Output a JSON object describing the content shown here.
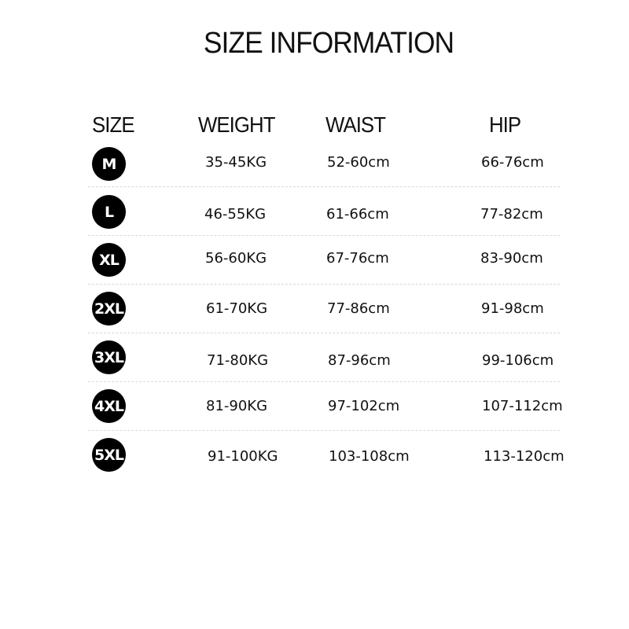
{
  "title": "SIZE INFORMATION",
  "headers": {
    "size": "SIZE",
    "weight": "WEIGHT",
    "waist": "WAIST",
    "hip": "HIP"
  },
  "rows": [
    {
      "size": "M",
      "weight": "35-45KG",
      "waist": "52-60cm",
      "hip": "66-76cm"
    },
    {
      "size": "L",
      "weight": "46-55KG",
      "waist": "61-66cm",
      "hip": "77-82cm"
    },
    {
      "size": "XL",
      "weight": "56-60KG",
      "waist": "67-76cm",
      "hip": "83-90cm"
    },
    {
      "size": "2XL",
      "weight": "61-70KG",
      "waist": "77-86cm",
      "hip": "91-98cm"
    },
    {
      "size": "3XL",
      "weight": "71-80KG",
      "waist": "87-96cm",
      "hip": "99-106cm"
    },
    {
      "size": "4XL",
      "weight": "81-90KG",
      "waist": "97-102cm",
      "hip": "107-112cm"
    },
    {
      "size": "5XL",
      "weight": "91-100KG",
      "waist": "103-108cm",
      "hip": "113-120cm"
    }
  ],
  "colors": {
    "badge": "#000000",
    "badge_text": "#ffffff",
    "divider": "#d8d8d8"
  }
}
